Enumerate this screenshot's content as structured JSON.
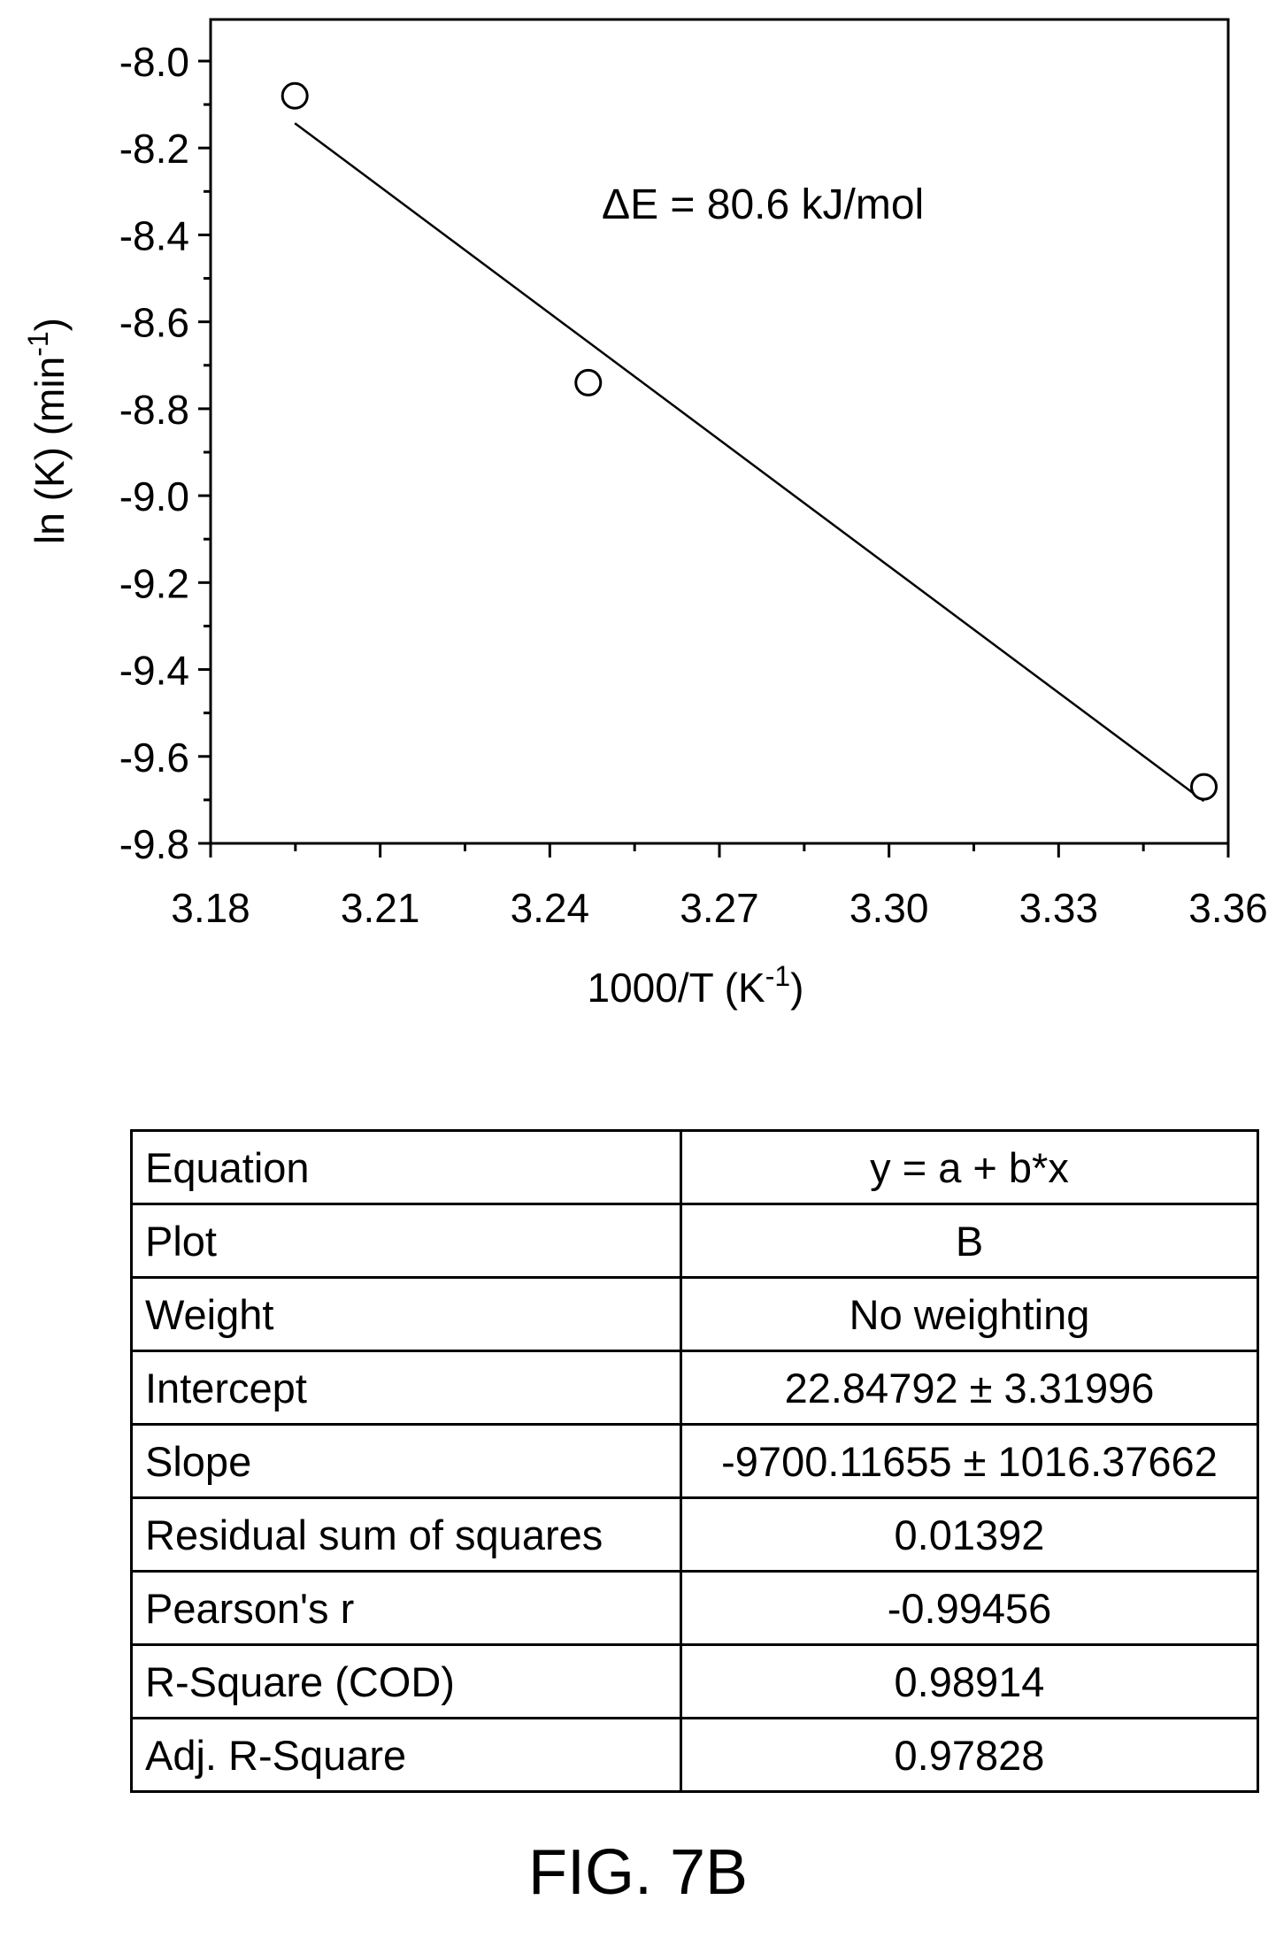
{
  "chart_data": {
    "type": "scatter",
    "title": "",
    "xlabel": "1000/T (K",
    "xlabel_sup": "-1",
    "xlabel_close": ")",
    "ylabel": "ln (K) (min",
    "ylabel_sup": "-1",
    "ylabel_close": ")",
    "xlim": [
      3.18,
      3.36
    ],
    "ylim": [
      -9.8,
      -8.0
    ],
    "x_ticks": [
      "3.18",
      "3.21",
      "3.24",
      "3.27",
      "3.30",
      "3.33",
      "3.36"
    ],
    "y_ticks": [
      "-8.0",
      "-8.2",
      "-8.4",
      "-8.6",
      "-8.8",
      "-9.0",
      "-9.2",
      "-9.4",
      "-9.6",
      "-9.8"
    ],
    "points": [
      {
        "x": 3.1949,
        "y": -8.08
      },
      {
        "x": 3.2468,
        "y": -8.74
      },
      {
        "x": 3.3557,
        "y": -9.67
      }
    ],
    "fit_line": {
      "intercept": 22.84792,
      "slope": -9.70011655,
      "x_range": [
        3.1949,
        3.3557
      ]
    },
    "annotation": "ΔE = 80.6 kJ/mol",
    "grid": false,
    "legend": "none"
  },
  "table": {
    "rows": [
      {
        "label": "Equation",
        "value": "y = a + b*x"
      },
      {
        "label": "Plot",
        "value": "B"
      },
      {
        "label": "Weight",
        "value": "No weighting"
      },
      {
        "label": "Intercept",
        "value": "22.84792 ± 3.31996"
      },
      {
        "label": "Slope",
        "value": "-9700.11655 ± 1016.37662"
      },
      {
        "label": "Residual sum of squares",
        "value": "0.01392"
      },
      {
        "label": "Pearson's r",
        "value": "-0.99456"
      },
      {
        "label": "R-Square (COD)",
        "value": "0.98914"
      },
      {
        "label": "Adj. R-Square",
        "value": "0.97828"
      }
    ]
  },
  "figure_label": "FIG. 7B"
}
